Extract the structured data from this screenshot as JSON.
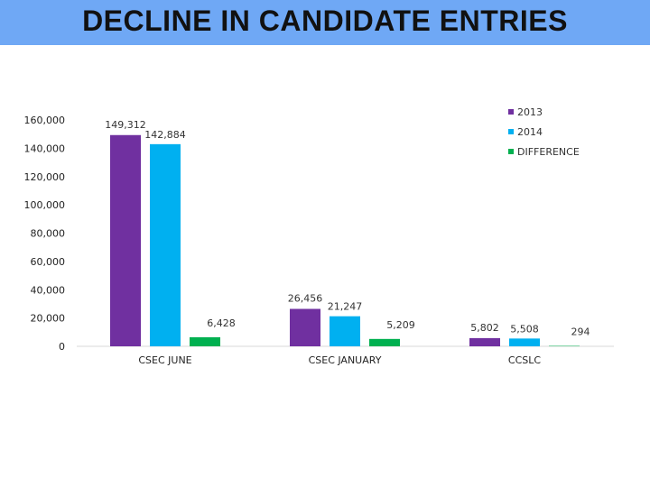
{
  "title": "DECLINE IN CANDIDATE ENTRIES",
  "chart_data": {
    "type": "bar",
    "categories": [
      "CSEC JUNE",
      "CSEC JANUARY",
      "CCSLC"
    ],
    "series": [
      {
        "name": "2013",
        "values": [
          149312,
          26456,
          5802
        ],
        "labels": [
          "149,312",
          "26,456",
          "5,802"
        ],
        "color": "#7030a0"
      },
      {
        "name": "2014",
        "values": [
          142884,
          21247,
          5508
        ],
        "labels": [
          "142,884",
          "21,247",
          "5,508"
        ],
        "color": "#00b0f0"
      },
      {
        "name": "DIFFERENCE",
        "values": [
          6428,
          5209,
          294
        ],
        "labels": [
          "6,428",
          "5,209",
          "294"
        ],
        "color": "#00b050"
      }
    ],
    "ylim": [
      0,
      160000
    ],
    "yticks": [
      0,
      20000,
      40000,
      60000,
      80000,
      100000,
      120000,
      140000,
      160000
    ],
    "ytick_labels": [
      "0",
      "20,000",
      "40,000",
      "60,000",
      "80,000",
      "100,000",
      "120,000",
      "140,000",
      "160,000"
    ],
    "grid": false,
    "legend": "top-right"
  }
}
